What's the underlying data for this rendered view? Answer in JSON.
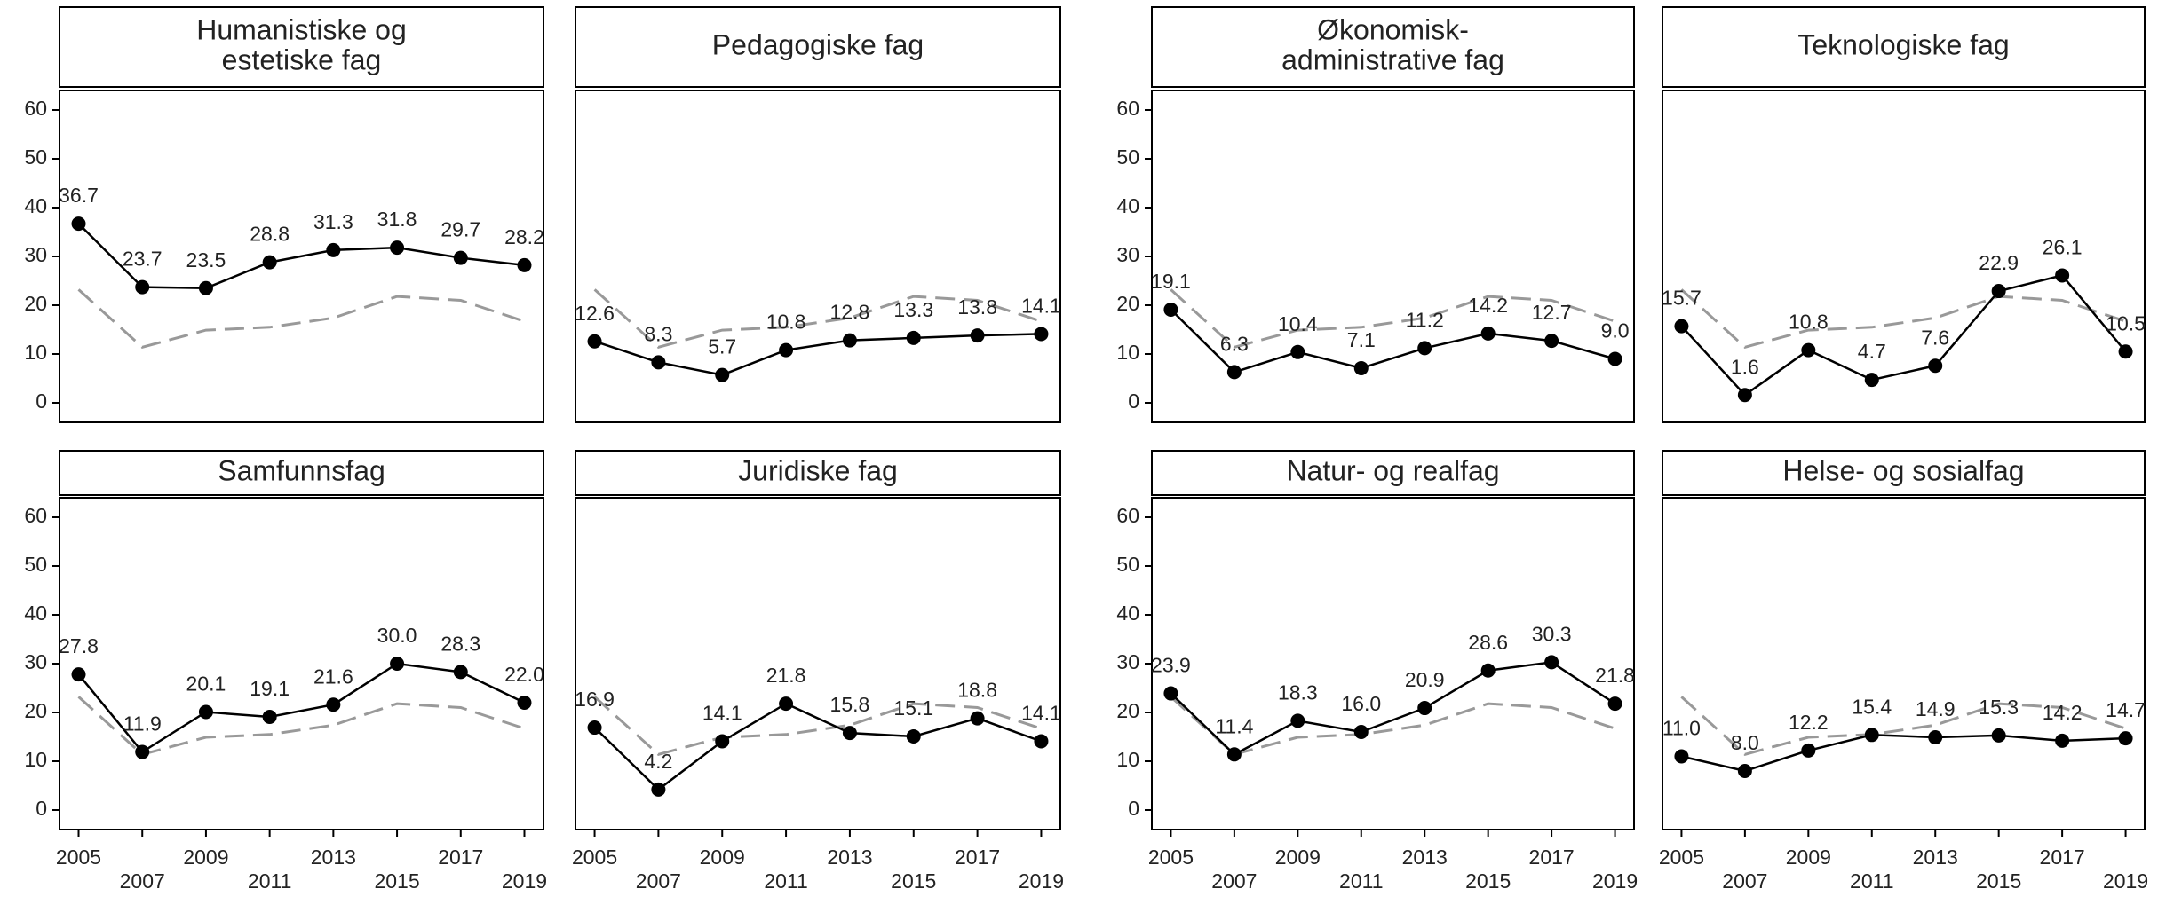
{
  "chart_data": [
    {
      "type": "line",
      "title": [
        "Humanistiske og",
        "estetiske fag"
      ],
      "x": [
        2005,
        2007,
        2009,
        2011,
        2013,
        2015,
        2017,
        2019
      ],
      "xlim": [
        2004.4,
        2019.6
      ],
      "ylim": [
        -4,
        64
      ],
      "yticks": [
        0,
        10,
        20,
        30,
        40,
        50,
        60
      ],
      "series": [
        {
          "color": "#999999",
          "dashed": true,
          "values": [
            23.2,
            11.4,
            14.9,
            15.5,
            17.4,
            21.8,
            21.0,
            16.7
          ]
        },
        {
          "color": "#000000",
          "values": [
            36.7,
            23.7,
            23.5,
            28.8,
            31.3,
            31.8,
            29.7,
            28.2
          ],
          "value_labels": [
            "36.7",
            "23.7",
            "23.5",
            "28.8",
            "31.3",
            "31.8",
            "29.7",
            "28.2"
          ]
        }
      ]
    },
    {
      "type": "line",
      "title": [
        "Pedagogiske fag"
      ],
      "x": [
        2005,
        2007,
        2009,
        2011,
        2013,
        2015,
        2017,
        2019
      ],
      "xlim": [
        2004.4,
        2019.6
      ],
      "ylim": [
        -4,
        64
      ],
      "series": [
        {
          "color": "#999999",
          "dashed": true,
          "values": [
            23.2,
            11.4,
            14.9,
            15.5,
            17.4,
            21.8,
            21.0,
            16.7
          ]
        },
        {
          "color": "#000000",
          "values": [
            12.6,
            8.3,
            5.7,
            10.8,
            12.8,
            13.3,
            13.8,
            14.1
          ],
          "value_labels": [
            "12.6",
            "8.3",
            "5.7",
            "10.8",
            "12.8",
            "13.3",
            "13.8",
            "14.1"
          ]
        }
      ]
    },
    {
      "type": "line",
      "title": [
        "Økonomisk-",
        "administrative fag"
      ],
      "x": [
        2005,
        2007,
        2009,
        2011,
        2013,
        2015,
        2017,
        2019
      ],
      "xlim": [
        2004.4,
        2019.6
      ],
      "ylim": [
        -4,
        64
      ],
      "yticks": [
        0,
        10,
        20,
        30,
        40,
        50,
        60
      ],
      "series": [
        {
          "color": "#999999",
          "dashed": true,
          "values": [
            23.2,
            11.4,
            14.9,
            15.5,
            17.4,
            21.8,
            21.0,
            16.7
          ]
        },
        {
          "color": "#000000",
          "values": [
            19.1,
            6.3,
            10.4,
            7.1,
            11.2,
            14.2,
            12.7,
            9.0
          ],
          "value_labels": [
            "19.1",
            "6.3",
            "10.4",
            "7.1",
            "11.2",
            "14.2",
            "12.7",
            "9.0"
          ]
        }
      ]
    },
    {
      "type": "line",
      "title": [
        "Teknologiske fag"
      ],
      "x": [
        2005,
        2007,
        2009,
        2011,
        2013,
        2015,
        2017,
        2019
      ],
      "xlim": [
        2004.4,
        2019.6
      ],
      "ylim": [
        -4,
        64
      ],
      "series": [
        {
          "color": "#999999",
          "dashed": true,
          "values": [
            23.2,
            11.4,
            14.9,
            15.5,
            17.4,
            21.8,
            21.0,
            16.7
          ]
        },
        {
          "color": "#000000",
          "values": [
            15.7,
            1.6,
            10.8,
            4.7,
            7.6,
            22.9,
            26.1,
            10.5
          ],
          "value_labels": [
            "15.7",
            "1.6",
            "10.8",
            "4.7",
            "7.6",
            "22.9",
            "26.1",
            "10.5"
          ]
        }
      ]
    },
    {
      "type": "line",
      "title": [
        "Samfunnsfag"
      ],
      "x": [
        2005,
        2007,
        2009,
        2011,
        2013,
        2015,
        2017,
        2019
      ],
      "xlim": [
        2004.4,
        2019.6
      ],
      "ylim": [
        -4,
        64
      ],
      "yticks": [
        0,
        10,
        20,
        30,
        40,
        50,
        60
      ],
      "xticks": [
        2005,
        2007,
        2009,
        2011,
        2013,
        2015,
        2017,
        2019
      ],
      "series": [
        {
          "color": "#999999",
          "dashed": true,
          "values": [
            23.2,
            11.4,
            14.9,
            15.5,
            17.4,
            21.8,
            21.0,
            16.7
          ]
        },
        {
          "color": "#000000",
          "values": [
            27.8,
            11.9,
            20.1,
            19.1,
            21.6,
            30.0,
            28.3,
            22.0
          ],
          "value_labels": [
            "27.8",
            "11.9",
            "20.1",
            "19.1",
            "21.6",
            "30.0",
            "28.3",
            "22.0"
          ]
        }
      ]
    },
    {
      "type": "line",
      "title": [
        "Juridiske fag"
      ],
      "x": [
        2005,
        2007,
        2009,
        2011,
        2013,
        2015,
        2017,
        2019
      ],
      "xlim": [
        2004.4,
        2019.6
      ],
      "ylim": [
        -4,
        64
      ],
      "xticks": [
        2005,
        2007,
        2009,
        2011,
        2013,
        2015,
        2017,
        2019
      ],
      "series": [
        {
          "color": "#999999",
          "dashed": true,
          "values": [
            23.2,
            11.4,
            14.9,
            15.5,
            17.4,
            21.8,
            21.0,
            16.7
          ]
        },
        {
          "color": "#000000",
          "values": [
            16.9,
            4.2,
            14.1,
            21.8,
            15.8,
            15.1,
            18.8,
            14.1
          ],
          "value_labels": [
            "16.9",
            "4.2",
            "14.1",
            "21.8",
            "15.8",
            "15.1",
            "18.8",
            "14.1"
          ]
        }
      ]
    },
    {
      "type": "line",
      "title": [
        "Natur- og realfag"
      ],
      "x": [
        2005,
        2007,
        2009,
        2011,
        2013,
        2015,
        2017,
        2019
      ],
      "xlim": [
        2004.4,
        2019.6
      ],
      "ylim": [
        -4,
        64
      ],
      "yticks": [
        0,
        10,
        20,
        30,
        40,
        50,
        60
      ],
      "xticks": [
        2005,
        2007,
        2009,
        2011,
        2013,
        2015,
        2017,
        2019
      ],
      "series": [
        {
          "color": "#999999",
          "dashed": true,
          "values": [
            23.2,
            11.4,
            14.9,
            15.5,
            17.4,
            21.8,
            21.0,
            16.7
          ]
        },
        {
          "color": "#000000",
          "values": [
            23.9,
            11.4,
            18.3,
            16.0,
            20.9,
            28.6,
            30.3,
            21.8
          ],
          "value_labels": [
            "23.9",
            "11.4",
            "18.3",
            "16.0",
            "20.9",
            "28.6",
            "30.3",
            "21.8"
          ]
        }
      ]
    },
    {
      "type": "line",
      "title": [
        "Helse- og sosialfag"
      ],
      "x": [
        2005,
        2007,
        2009,
        2011,
        2013,
        2015,
        2017,
        2019
      ],
      "xlim": [
        2004.4,
        2019.6
      ],
      "ylim": [
        -4,
        64
      ],
      "xticks": [
        2005,
        2007,
        2009,
        2011,
        2013,
        2015,
        2017,
        2019
      ],
      "series": [
        {
          "color": "#999999",
          "dashed": true,
          "values": [
            23.2,
            11.4,
            14.9,
            15.5,
            17.4,
            21.8,
            21.0,
            16.7
          ]
        },
        {
          "color": "#000000",
          "values": [
            11.0,
            8.0,
            12.2,
            15.4,
            14.9,
            15.3,
            14.2,
            14.7
          ],
          "value_labels": [
            "11.0",
            "8.0",
            "12.2",
            "15.4",
            "14.9",
            "15.3",
            "14.2",
            "14.7"
          ]
        }
      ]
    }
  ]
}
